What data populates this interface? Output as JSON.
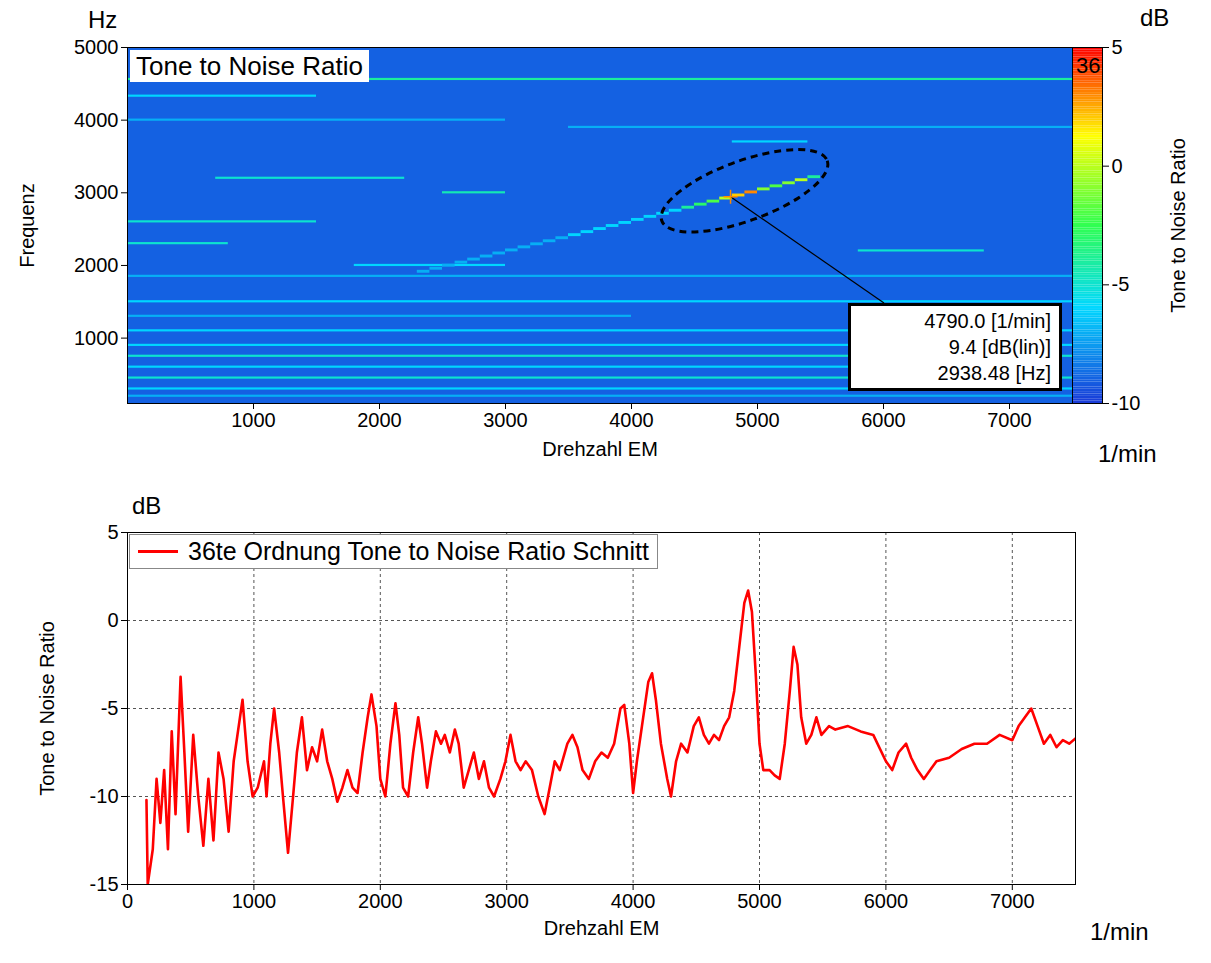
{
  "chart_data": [
    {
      "type": "heatmap",
      "title": "Tone to Noise Ratio",
      "x_label": "Drehzahl EM",
      "x_unit": "1/min",
      "y_label": "Frequenz",
      "y_unit": "Hz",
      "xlim": [
        0,
        7500
      ],
      "xticks": [
        1000,
        2000,
        3000,
        4000,
        5000,
        6000,
        7000
      ],
      "ylim": [
        100,
        5000
      ],
      "yticks": [
        1000,
        2000,
        3000,
        4000,
        5000
      ],
      "colorbar": {
        "label": "Tone to Noise Ratio",
        "unit": "dB",
        "range": [
          -10,
          5
        ],
        "ticks": [
          -10,
          -5,
          0,
          5
        ]
      },
      "annotations": [
        {
          "text": "36"
        }
      ],
      "cursor": {
        "x": 4790,
        "y": 2938.48,
        "value": 9.4,
        "lines": [
          "4790.0 [1/min]",
          "9.4 [dB(lin)]",
          "2938.48 [Hz]"
        ]
      },
      "cells": [
        {
          "x": [
            0,
            7500
          ],
          "y": [
            100,
            5000
          ],
          "value": -9
        },
        {
          "x": [
            0,
            7500
          ],
          "y": [
            4545,
            4575
          ],
          "value": -4
        },
        {
          "x": [
            0,
            1500
          ],
          "y": [
            4315,
            4345
          ],
          "value": -6
        },
        {
          "x": [
            0,
            3000
          ],
          "y": [
            3985,
            4015
          ],
          "value": -7
        },
        {
          "x": [
            3500,
            7500
          ],
          "y": [
            3885,
            3915
          ],
          "value": -7
        },
        {
          "x": [
            4800,
            5400
          ],
          "y": [
            3685,
            3715
          ],
          "value": -6
        },
        {
          "x": [
            700,
            2200
          ],
          "y": [
            3185,
            3215
          ],
          "value": -5
        },
        {
          "x": [
            2500,
            3000
          ],
          "y": [
            2985,
            3015
          ],
          "value": -4.5
        },
        {
          "x": [
            0,
            1500
          ],
          "y": [
            2585,
            2615
          ],
          "value": -5
        },
        {
          "x": [
            0,
            800
          ],
          "y": [
            2285,
            2315
          ],
          "value": -5
        },
        {
          "x": [
            5800,
            6800
          ],
          "y": [
            2185,
            2215
          ],
          "value": -5
        },
        {
          "x": [
            1800,
            3000
          ],
          "y": [
            1985,
            2015
          ],
          "value": -6
        },
        {
          "x": [
            0,
            7500
          ],
          "y": [
            1835,
            1865
          ],
          "value": -7
        },
        {
          "x": [
            0,
            7500
          ],
          "y": [
            1485,
            1515
          ],
          "value": -6
        },
        {
          "x": [
            0,
            4000
          ],
          "y": [
            1285,
            1315
          ],
          "value": -7
        },
        {
          "x": [
            0,
            7500
          ],
          "y": [
            1085,
            1115
          ],
          "value": -6
        },
        {
          "x": [
            0,
            7500
          ],
          "y": [
            885,
            915
          ],
          "value": -6
        },
        {
          "x": [
            0,
            7500
          ],
          "y": [
            735,
            765
          ],
          "value": -5
        },
        {
          "x": [
            0,
            6000
          ],
          "y": [
            585,
            615
          ],
          "value": -6
        },
        {
          "x": [
            0,
            7500
          ],
          "y": [
            435,
            465
          ],
          "value": -5
        },
        {
          "x": [
            0,
            7500
          ],
          "y": [
            285,
            315
          ],
          "value": -6
        },
        {
          "x": [
            0,
            7500
          ],
          "y": [
            185,
            215
          ],
          "value": -7
        },
        {
          "x": [
            2300,
            2400
          ],
          "y": [
            1893,
            1933
          ],
          "value": -7
        },
        {
          "x": [
            2400,
            2500
          ],
          "y": [
            1935,
            1975
          ],
          "value": -7
        },
        {
          "x": [
            2500,
            2600
          ],
          "y": [
            1977,
            2017
          ],
          "value": -7
        },
        {
          "x": [
            2600,
            2700
          ],
          "y": [
            2019,
            2059
          ],
          "value": -7
        },
        {
          "x": [
            2700,
            2800
          ],
          "y": [
            2061,
            2101
          ],
          "value": -7
        },
        {
          "x": [
            2800,
            2900
          ],
          "y": [
            2103,
            2143
          ],
          "value": -7
        },
        {
          "x": [
            2900,
            3000
          ],
          "y": [
            2145,
            2185
          ],
          "value": -7
        },
        {
          "x": [
            3000,
            3100
          ],
          "y": [
            2187,
            2227
          ],
          "value": -7
        },
        {
          "x": [
            3100,
            3200
          ],
          "y": [
            2229,
            2269
          ],
          "value": -7
        },
        {
          "x": [
            3200,
            3300
          ],
          "y": [
            2271,
            2311
          ],
          "value": -7
        },
        {
          "x": [
            3300,
            3400
          ],
          "y": [
            2313,
            2353
          ],
          "value": -7
        },
        {
          "x": [
            3400,
            3500
          ],
          "y": [
            2355,
            2395
          ],
          "value": -7
        },
        {
          "x": [
            3500,
            3600
          ],
          "y": [
            2397,
            2437
          ],
          "value": -6
        },
        {
          "x": [
            3600,
            3700
          ],
          "y": [
            2439,
            2479
          ],
          "value": -6
        },
        {
          "x": [
            3700,
            3800
          ],
          "y": [
            2481,
            2521
          ],
          "value": -6
        },
        {
          "x": [
            3800,
            3900
          ],
          "y": [
            2523,
            2563
          ],
          "value": -6
        },
        {
          "x": [
            3900,
            4000
          ],
          "y": [
            2565,
            2605
          ],
          "value": -6
        },
        {
          "x": [
            4000,
            4100
          ],
          "y": [
            2607,
            2647
          ],
          "value": -6
        },
        {
          "x": [
            4100,
            4200
          ],
          "y": [
            2649,
            2689
          ],
          "value": -6
        },
        {
          "x": [
            4200,
            4300
          ],
          "y": [
            2691,
            2731
          ],
          "value": -6
        },
        {
          "x": [
            4300,
            4400
          ],
          "y": [
            2733,
            2773
          ],
          "value": -6
        },
        {
          "x": [
            4400,
            4500
          ],
          "y": [
            2775,
            2815
          ],
          "value": -4
        },
        {
          "x": [
            4500,
            4600
          ],
          "y": [
            2817,
            2857
          ],
          "value": -3
        },
        {
          "x": [
            4600,
            4700
          ],
          "y": [
            2859,
            2899
          ],
          "value": -2
        },
        {
          "x": [
            4700,
            4800
          ],
          "y": [
            2901,
            2941
          ],
          "value": 0
        },
        {
          "x": [
            4800,
            4900
          ],
          "y": [
            2943,
            2983
          ],
          "value": 2
        },
        {
          "x": [
            4900,
            5000
          ],
          "y": [
            2985,
            3025
          ],
          "value": 3
        },
        {
          "x": [
            5000,
            5100
          ],
          "y": [
            3027,
            3067
          ],
          "value": -1
        },
        {
          "x": [
            5100,
            5200
          ],
          "y": [
            3069,
            3109
          ],
          "value": -2
        },
        {
          "x": [
            5200,
            5300
          ],
          "y": [
            3111,
            3151
          ],
          "value": -1
        },
        {
          "x": [
            5300,
            5400
          ],
          "y": [
            3153,
            3193
          ],
          "value": 0
        },
        {
          "x": [
            5400,
            5500
          ],
          "y": [
            3195,
            3235
          ],
          "value": -4
        }
      ]
    },
    {
      "type": "line",
      "x_label": "Drehzahl EM",
      "x_unit": "1/min",
      "y_label": "Tone to Noise Ratio",
      "y_unit": "dB",
      "xlim": [
        0,
        7500
      ],
      "xticks": [
        0,
        1000,
        2000,
        3000,
        4000,
        5000,
        6000,
        7000
      ],
      "ylim": [
        -15,
        5
      ],
      "yticks": [
        -15,
        -10,
        -5,
        0,
        5
      ],
      "grid": true,
      "legend": "top-left",
      "x": [
        150,
        160,
        200,
        230,
        260,
        290,
        320,
        350,
        380,
        420,
        450,
        480,
        520,
        560,
        600,
        640,
        680,
        720,
        760,
        800,
        840,
        870,
        910,
        950,
        990,
        1030,
        1080,
        1100,
        1130,
        1160,
        1200,
        1230,
        1270,
        1310,
        1340,
        1380,
        1420,
        1460,
        1500,
        1540,
        1580,
        1620,
        1660,
        1700,
        1740,
        1780,
        1820,
        1860,
        1900,
        1930,
        1970,
        2000,
        2040,
        2080,
        2120,
        2150,
        2180,
        2220,
        2260,
        2300,
        2330,
        2370,
        2400,
        2440,
        2480,
        2510,
        2550,
        2590,
        2620,
        2660,
        2700,
        2740,
        2780,
        2820,
        2860,
        2900,
        2950,
        2990,
        3030,
        3070,
        3110,
        3150,
        3200,
        3250,
        3300,
        3340,
        3380,
        3420,
        3480,
        3520,
        3560,
        3600,
        3650,
        3700,
        3750,
        3800,
        3850,
        3900,
        3930,
        3970,
        4000,
        4030,
        4070,
        4120,
        4150,
        4180,
        4220,
        4270,
        4300,
        4340,
        4380,
        4430,
        4480,
        4520,
        4560,
        4600,
        4640,
        4680,
        4720,
        4760,
        4800,
        4840,
        4880,
        4910,
        4940,
        4970,
        5000,
        5030,
        5080,
        5120,
        5160,
        5200,
        5240,
        5270,
        5300,
        5330,
        5370,
        5410,
        5450,
        5490,
        5550,
        5600,
        5700,
        5800,
        5900,
        6000,
        6050,
        6100,
        6160,
        6200,
        6250,
        6300,
        6350,
        6400,
        6500,
        6600,
        6700,
        6800,
        6900,
        7000,
        7050,
        7100,
        7150,
        7200,
        7250,
        7300,
        7350,
        7400,
        7450,
        7500
      ],
      "series": [
        {
          "name": "36te Ordnung Tone to Noise Ratio Schnitt",
          "color": "#ff0000",
          "values": [
            -10.2,
            -15,
            -13,
            -9,
            -11.5,
            -8.5,
            -13,
            -6.3,
            -11,
            -3.2,
            -7.5,
            -12,
            -6.5,
            -10,
            -12.8,
            -9,
            -12.5,
            -7.5,
            -9,
            -12,
            -8,
            -6.5,
            -4.5,
            -8,
            -10,
            -9.5,
            -8,
            -10,
            -7,
            -5,
            -7.5,
            -10,
            -13.2,
            -10,
            -7.5,
            -5.5,
            -8.5,
            -7.2,
            -8,
            -6.2,
            -8,
            -9,
            -10.3,
            -9.5,
            -8.5,
            -9.5,
            -9.8,
            -7.5,
            -5.5,
            -4.2,
            -6,
            -9,
            -10,
            -7,
            -4.7,
            -6.5,
            -9.5,
            -10,
            -7.5,
            -5.5,
            -7,
            -9.5,
            -8,
            -6.3,
            -7,
            -6.5,
            -7.5,
            -6.2,
            -7,
            -9.5,
            -8.5,
            -7.5,
            -9,
            -8,
            -9.5,
            -10,
            -9,
            -8,
            -6.5,
            -8,
            -8.5,
            -8,
            -8.5,
            -10,
            -11,
            -9.5,
            -8,
            -8.5,
            -7,
            -6.5,
            -7.2,
            -8.5,
            -9,
            -8,
            -7.5,
            -7.8,
            -7,
            -5,
            -4.8,
            -7,
            -9.8,
            -8,
            -6,
            -3.5,
            -3,
            -4.5,
            -7,
            -9,
            -10,
            -8,
            -7,
            -7.5,
            -6,
            -5.5,
            -6.5,
            -7,
            -6.5,
            -6.8,
            -6,
            -5.5,
            -4,
            -1.5,
            1,
            1.7,
            0.5,
            -3,
            -7,
            -8.5,
            -8.5,
            -8.8,
            -9,
            -7,
            -4,
            -1.5,
            -2.5,
            -5.5,
            -7,
            -6.5,
            -5.5,
            -6.5,
            -6,
            -6.2,
            -6,
            -6.3,
            -6.5,
            -8,
            -8.5,
            -7.5,
            -7,
            -7.8,
            -8.5,
            -9,
            -8.5,
            -8,
            -7.8,
            -7.3,
            -7,
            -7,
            -6.5,
            -6.8,
            -6,
            -5.5,
            -5,
            -6,
            -7,
            -6.5,
            -7.2,
            -6.8,
            -7,
            -6.7
          ]
        }
      ]
    }
  ]
}
